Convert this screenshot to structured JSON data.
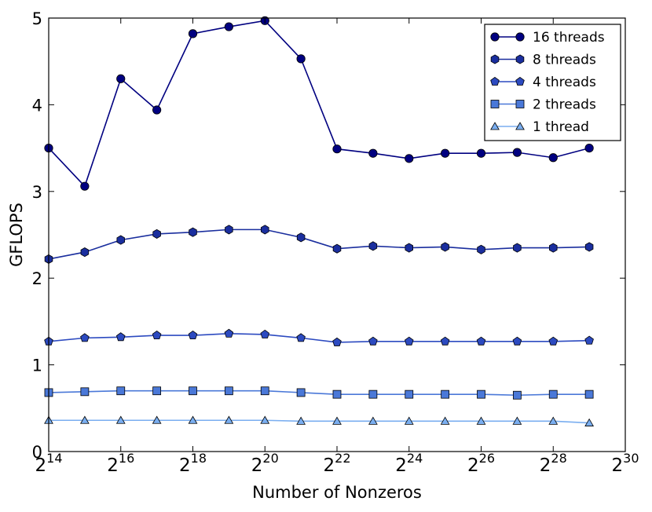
{
  "chart_data": {
    "type": "line",
    "title": "",
    "xlabel": "Number of Nonzeros",
    "ylabel": "GFLOPS",
    "x_scale": "log2",
    "xlim": [
      14,
      30
    ],
    "ylim": [
      0,
      5
    ],
    "x_ticks": [
      {
        "base": "2",
        "exp": "14",
        "value": 14
      },
      {
        "base": "2",
        "exp": "16",
        "value": 16
      },
      {
        "base": "2",
        "exp": "18",
        "value": 18
      },
      {
        "base": "2",
        "exp": "20",
        "value": 20
      },
      {
        "base": "2",
        "exp": "22",
        "value": 22
      },
      {
        "base": "2",
        "exp": "24",
        "value": 24
      },
      {
        "base": "2",
        "exp": "26",
        "value": 26
      },
      {
        "base": "2",
        "exp": "28",
        "value": 28
      },
      {
        "base": "2",
        "exp": "30",
        "value": 30
      }
    ],
    "y_ticks": [
      {
        "label": "0",
        "value": 0
      },
      {
        "label": "1",
        "value": 1
      },
      {
        "label": "2",
        "value": 2
      },
      {
        "label": "3",
        "value": 3
      },
      {
        "label": "4",
        "value": 4
      },
      {
        "label": "5",
        "value": 5
      }
    ],
    "x": [
      14.0,
      15.0,
      16.0,
      17.0,
      18.0,
      19.0,
      20.0,
      21.0,
      22.0,
      23.0,
      24.0,
      25.0,
      26.0,
      27.0,
      28.0,
      29.0
    ],
    "series": [
      {
        "name": "16 threads",
        "marker": "circle",
        "color": "#000080",
        "values": [
          3.5,
          3.06,
          4.3,
          3.94,
          4.82,
          4.9,
          4.97,
          4.53,
          3.49,
          3.44,
          3.38,
          3.44,
          3.44,
          3.45,
          3.39,
          3.5
        ]
      },
      {
        "name": "8 threads",
        "marker": "hexagon",
        "color": "#1a2e9e",
        "values": [
          2.22,
          2.3,
          2.44,
          2.51,
          2.53,
          2.56,
          2.56,
          2.47,
          2.34,
          2.37,
          2.35,
          2.36,
          2.33,
          2.35,
          2.35,
          2.36
        ]
      },
      {
        "name": "4 threads",
        "marker": "pentagon",
        "color": "#2c4ac0",
        "values": [
          1.27,
          1.31,
          1.32,
          1.34,
          1.34,
          1.36,
          1.35,
          1.31,
          1.26,
          1.27,
          1.27,
          1.27,
          1.27,
          1.27,
          1.27,
          1.28
        ]
      },
      {
        "name": "2 threads",
        "marker": "square",
        "color": "#4a78d8",
        "values": [
          0.68,
          0.69,
          0.7,
          0.7,
          0.7,
          0.7,
          0.7,
          0.68,
          0.66,
          0.66,
          0.66,
          0.66,
          0.66,
          0.65,
          0.66,
          0.66
        ]
      },
      {
        "name": "1 thread",
        "marker": "triangle",
        "color": "#7aaef0",
        "values": [
          0.36,
          0.36,
          0.36,
          0.36,
          0.36,
          0.36,
          0.36,
          0.35,
          0.35,
          0.35,
          0.35,
          0.35,
          0.35,
          0.35,
          0.35,
          0.33
        ]
      }
    ],
    "grid": false,
    "legend_position": "top-right"
  }
}
